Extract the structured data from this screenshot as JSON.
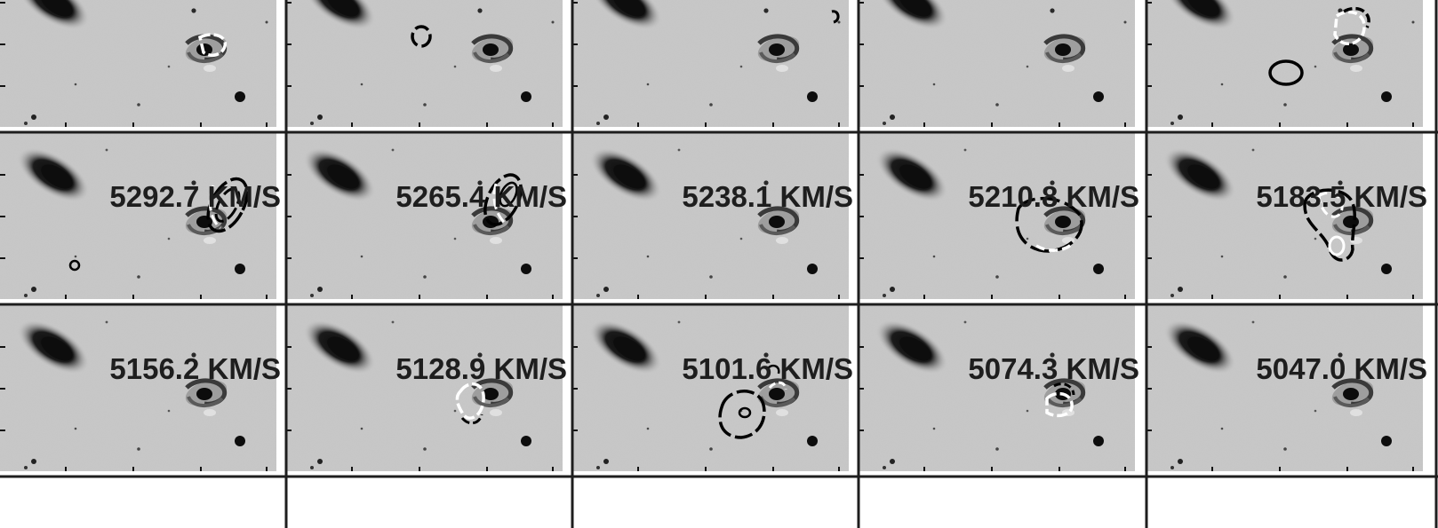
{
  "figure": {
    "rows": 3,
    "cols": 5,
    "panels": [
      {
        "label": ""
      },
      {
        "label": ""
      },
      {
        "label": ""
      },
      {
        "label": ""
      },
      {
        "label": ""
      },
      {
        "label": "5292.7 KM/S"
      },
      {
        "label": "5265.4 KM/S"
      },
      {
        "label": "5238.1 KM/S"
      },
      {
        "label": "5210.8 KM/S"
      },
      {
        "label": "5183.5 KM/S"
      },
      {
        "label": "5156.2 KM/S"
      },
      {
        "label": "5128.9 KM/S"
      },
      {
        "label": "5101.6 KM/S"
      },
      {
        "label": "5074.3 KM/S"
      },
      {
        "label": "5047.0 KM/S"
      }
    ]
  },
  "colors": {
    "background": "#c9c9c9",
    "frame": "#222222",
    "galaxy": "#111111",
    "contour_positive": "#ffffff",
    "contour_negative": "#000000"
  }
}
